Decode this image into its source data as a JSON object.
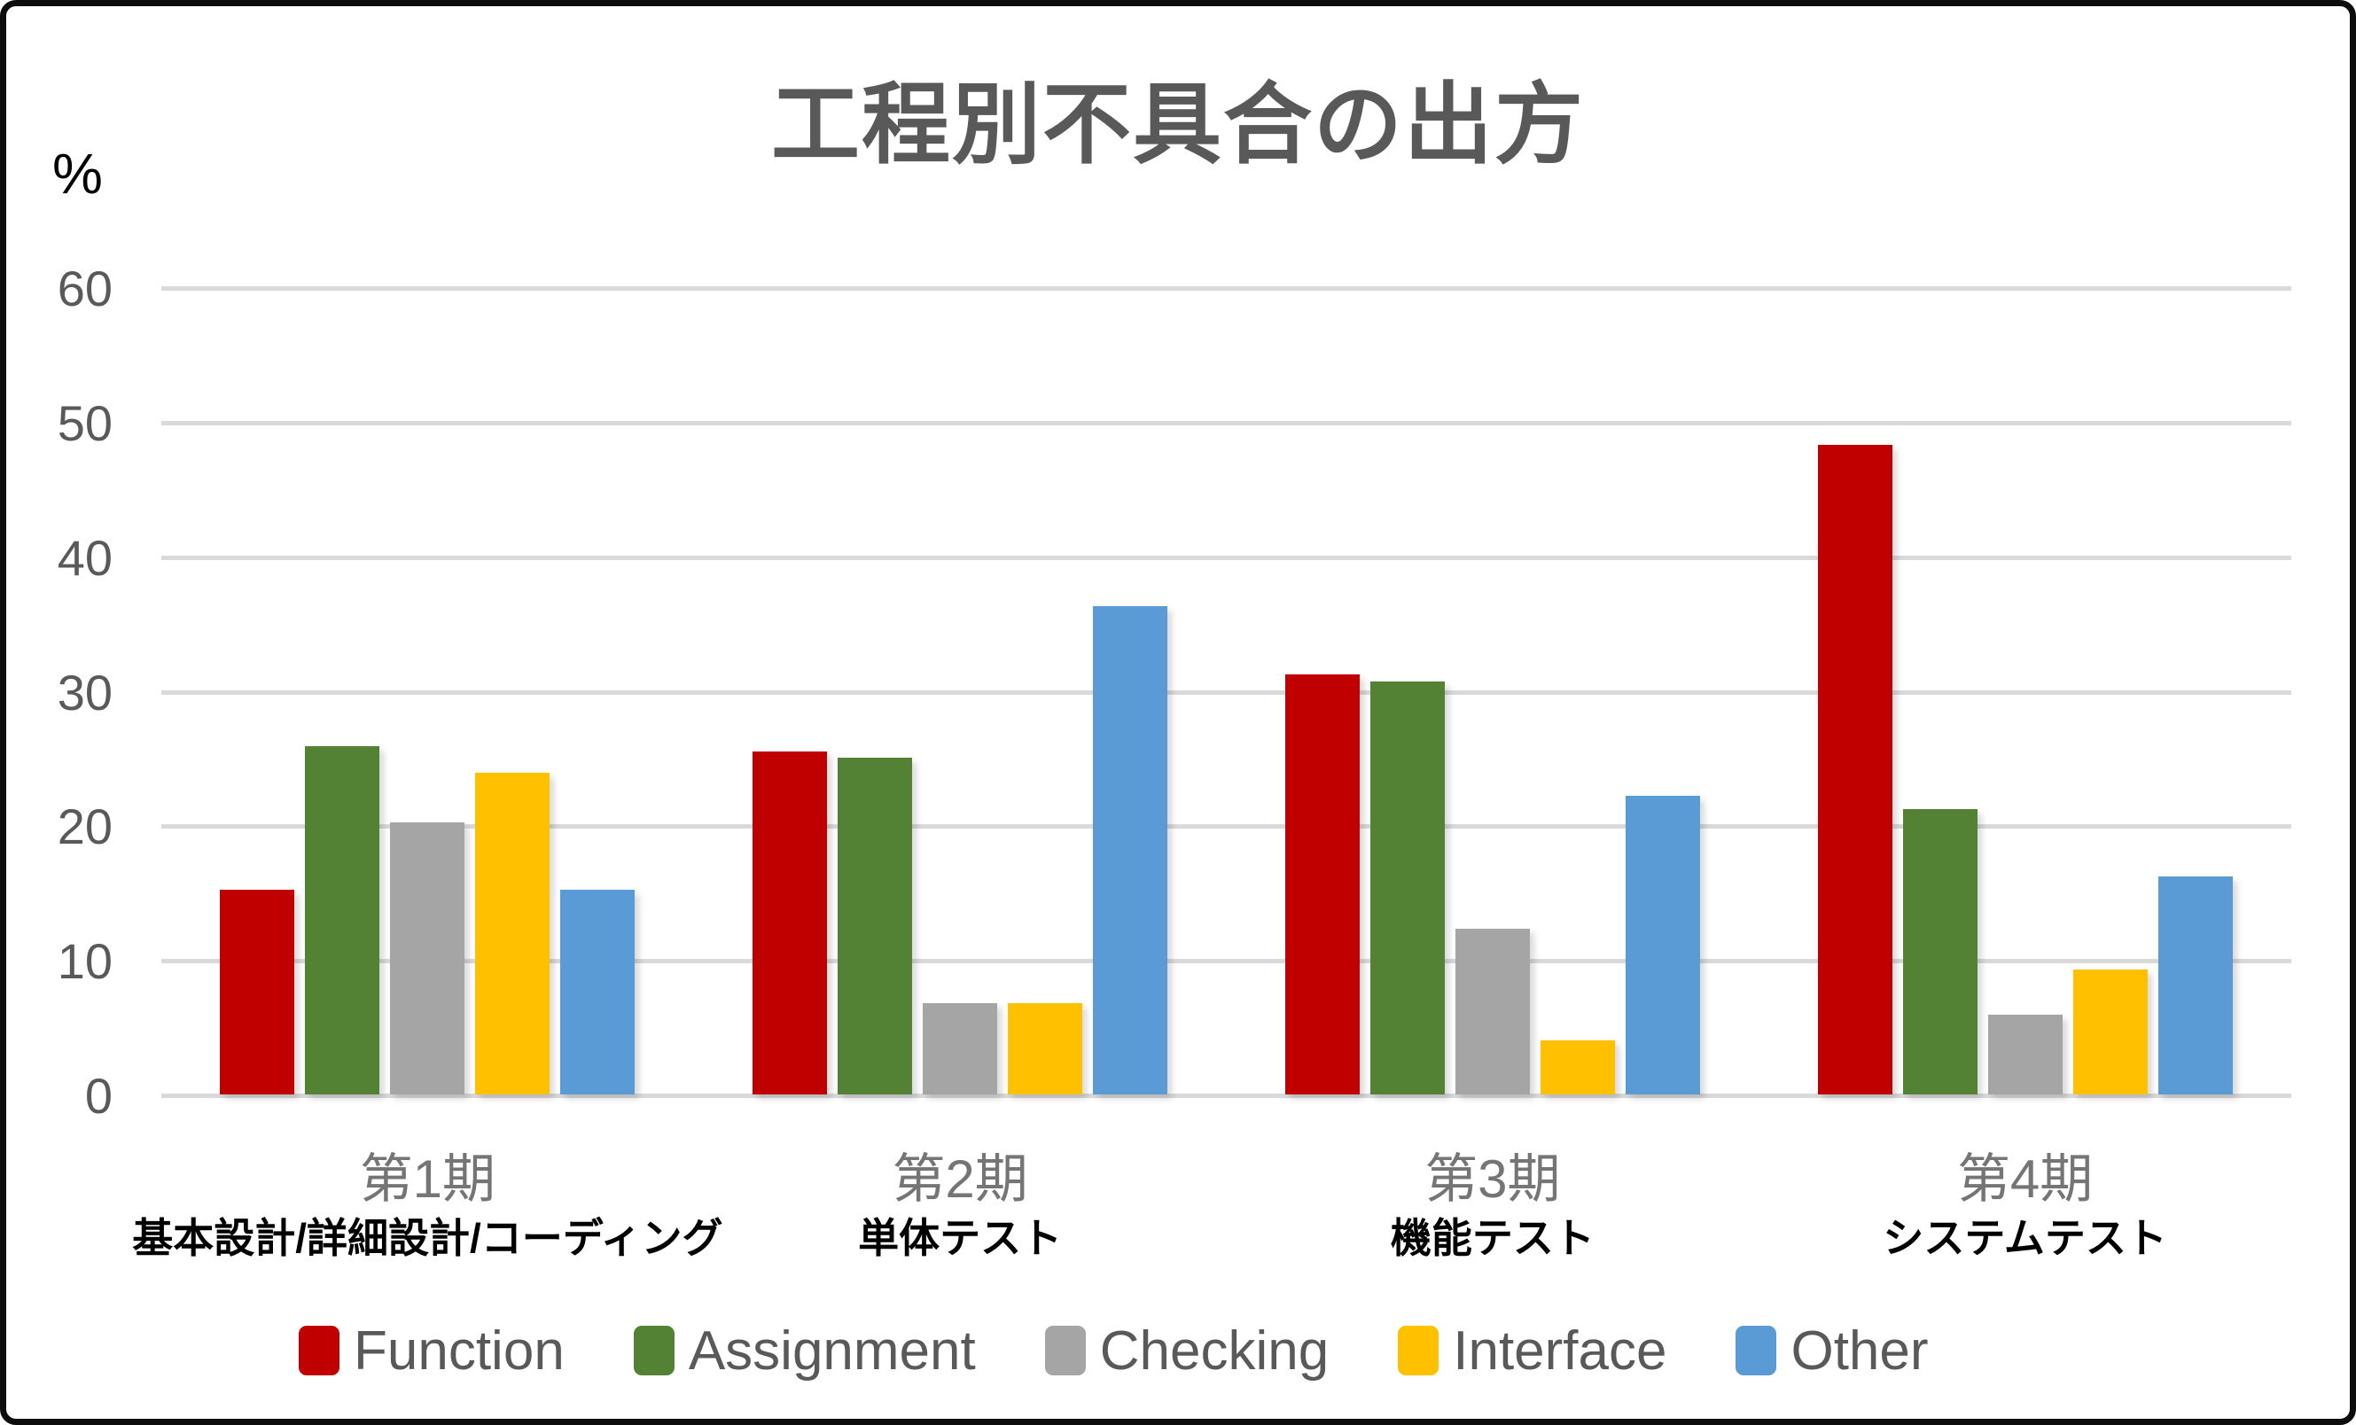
{
  "chart_data": {
    "type": "bar",
    "title": "工程別不具合の出方",
    "y_unit_label": "%",
    "ylim": [
      0,
      60
    ],
    "yticks": [
      0,
      10,
      20,
      30,
      40,
      50,
      60
    ],
    "grid": true,
    "legend_position": "bottom",
    "categories": [
      {
        "period": "第1期",
        "process": "基本設計/詳細設計/コーディング"
      },
      {
        "period": "第2期",
        "process": "単体テスト"
      },
      {
        "period": "第3期",
        "process": "機能テスト"
      },
      {
        "period": "第4期",
        "process": "システムテスト"
      }
    ],
    "series": [
      {
        "name": "Function",
        "color": "#C00000",
        "values": [
          15.2,
          25.5,
          31.2,
          48.3
        ]
      },
      {
        "name": "Assignment",
        "color": "#548235",
        "values": [
          25.9,
          25.0,
          30.7,
          21.2
        ]
      },
      {
        "name": "Checking",
        "color": "#A5A5A5",
        "values": [
          20.2,
          6.8,
          12.3,
          5.9
        ]
      },
      {
        "name": "Interface",
        "color": "#FFC000",
        "values": [
          23.9,
          6.8,
          4.0,
          9.3
        ]
      },
      {
        "name": "Other",
        "color": "#5B9BD5",
        "values": [
          15.2,
          36.3,
          22.2,
          16.2
        ]
      }
    ],
    "colors": {
      "grid": "#D9D9D9",
      "axis_text": "#595959",
      "title_text": "#595959",
      "period_text": "#757575",
      "process_text": "#000000",
      "legend_text": "#595959"
    }
  }
}
